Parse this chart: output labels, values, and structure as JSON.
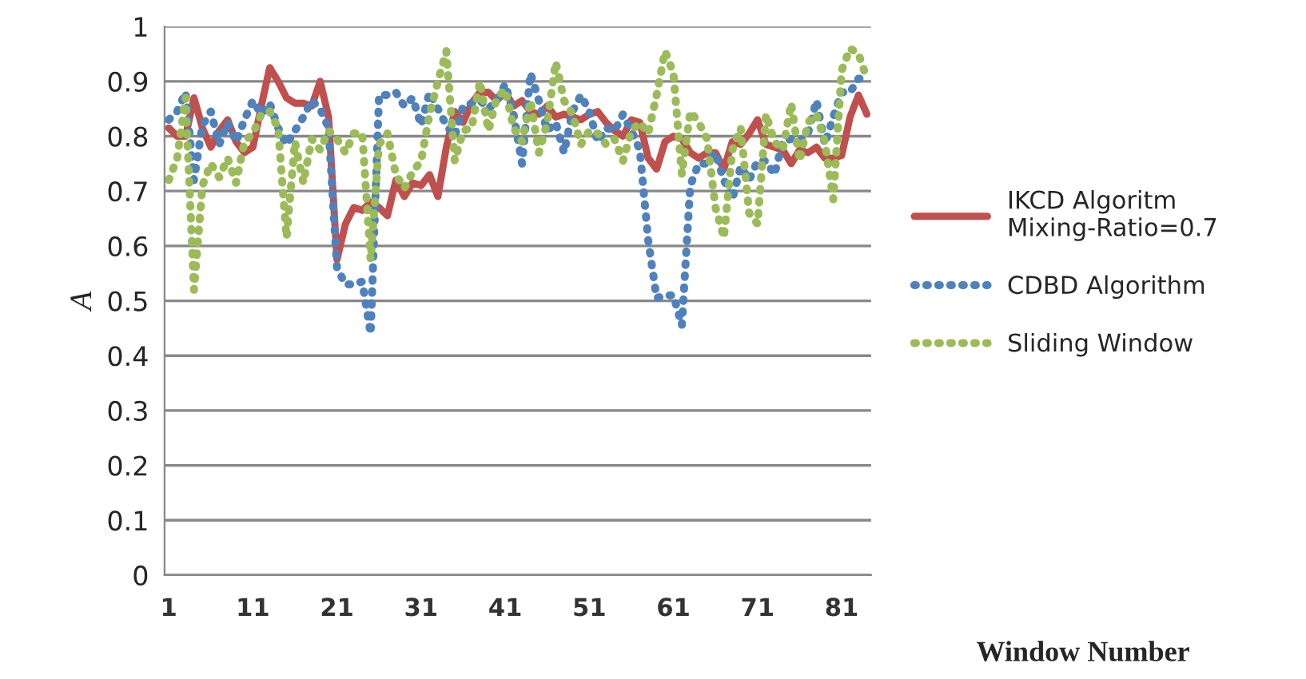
{
  "chart_data": {
    "type": "line",
    "xlabel": "Window Number",
    "ylabel": "A",
    "categories": [
      "1",
      null,
      null,
      null,
      null,
      null,
      null,
      null,
      null,
      null,
      "11",
      null,
      null,
      null,
      null,
      null,
      null,
      null,
      null,
      null,
      "21",
      null,
      null,
      null,
      null,
      null,
      null,
      null,
      null,
      null,
      "31",
      null,
      null,
      null,
      null,
      null,
      null,
      null,
      null,
      null,
      "41",
      null,
      null,
      null,
      null,
      null,
      null,
      null,
      null,
      null,
      "51",
      null,
      null,
      null,
      null,
      null,
      null,
      null,
      null,
      null,
      "61",
      null,
      null,
      null,
      null,
      null,
      null,
      null,
      null,
      null,
      "71",
      null,
      null,
      null,
      null,
      null,
      null,
      null,
      null,
      null,
      "81",
      null,
      null,
      null
    ],
    "ylim": [
      0,
      1
    ],
    "yticks": [
      0,
      0.1,
      0.2,
      0.3,
      0.4,
      0.5,
      0.6,
      0.7,
      0.8,
      0.9,
      1
    ],
    "grid": "y",
    "legend": "right",
    "marker": "none",
    "series": [
      {
        "name": "IKCD Algoritm\nMixing-Ratio=0.7",
        "color": "#c0504d",
        "line_style": "solid",
        "values": [
          0.815,
          0.8,
          0.8,
          0.87,
          0.815,
          0.78,
          0.81,
          0.83,
          0.79,
          0.77,
          0.78,
          0.855,
          0.925,
          0.9,
          0.87,
          0.86,
          0.86,
          0.855,
          0.9,
          0.835,
          0.575,
          0.64,
          0.67,
          0.665,
          0.68,
          0.67,
          0.655,
          0.72,
          0.69,
          0.715,
          0.71,
          0.73,
          0.69,
          0.78,
          0.845,
          0.825,
          0.86,
          0.88,
          0.88,
          0.865,
          0.88,
          0.855,
          0.865,
          0.845,
          0.84,
          0.855,
          0.835,
          0.84,
          0.835,
          0.83,
          0.84,
          0.845,
          0.825,
          0.81,
          0.8,
          0.83,
          0.825,
          0.76,
          0.74,
          0.79,
          0.8,
          0.795,
          0.77,
          0.76,
          0.77,
          0.77,
          0.74,
          0.79,
          0.785,
          0.805,
          0.83,
          0.785,
          0.78,
          0.775,
          0.75,
          0.775,
          0.77,
          0.78,
          0.76,
          0.76,
          0.765,
          0.835,
          0.875,
          0.84
        ]
      },
      {
        "name": "CDBD Algorithm",
        "color": "#4f81bd",
        "line_style": "dotted",
        "values": [
          0.83,
          0.845,
          0.88,
          0.72,
          0.82,
          0.845,
          0.785,
          0.825,
          0.79,
          0.83,
          0.865,
          0.84,
          0.86,
          0.815,
          0.785,
          0.81,
          0.835,
          0.865,
          0.85,
          0.815,
          0.56,
          0.53,
          0.53,
          0.535,
          0.44,
          0.875,
          0.875,
          0.88,
          0.855,
          0.87,
          0.82,
          0.88,
          0.85,
          0.82,
          0.8,
          0.855,
          0.86,
          0.865,
          0.85,
          0.865,
          0.895,
          0.84,
          0.75,
          0.915,
          0.865,
          0.81,
          0.825,
          0.77,
          0.845,
          0.875,
          0.845,
          0.79,
          0.815,
          0.81,
          0.84,
          0.81,
          0.775,
          0.61,
          0.505,
          0.51,
          0.51,
          0.455,
          0.71,
          0.75,
          0.75,
          0.77,
          0.72,
          0.685,
          0.745,
          0.72,
          0.755,
          0.755,
          0.73,
          0.79,
          0.795,
          0.79,
          0.805,
          0.865,
          0.785,
          0.835,
          0.88,
          0.88,
          0.905,
          0.905
        ]
      },
      {
        "name": "Sliding Window",
        "color": "#9bbb59",
        "line_style": "dotted",
        "values": [
          0.72,
          0.76,
          0.87,
          0.52,
          0.71,
          0.75,
          0.725,
          0.76,
          0.715,
          0.79,
          0.805,
          0.84,
          0.845,
          0.815,
          0.615,
          0.79,
          0.715,
          0.795,
          0.775,
          0.81,
          0.795,
          0.77,
          0.805,
          0.805,
          0.575,
          0.785,
          0.805,
          0.73,
          0.705,
          0.735,
          0.755,
          0.84,
          0.9,
          0.955,
          0.755,
          0.81,
          0.815,
          0.9,
          0.81,
          0.87,
          0.885,
          0.815,
          0.79,
          0.865,
          0.77,
          0.825,
          0.935,
          0.865,
          0.84,
          0.785,
          0.81,
          0.805,
          0.785,
          0.795,
          0.755,
          0.81,
          0.825,
          0.805,
          0.875,
          0.955,
          0.915,
          0.73,
          0.845,
          0.825,
          0.795,
          0.67,
          0.615,
          0.775,
          0.815,
          0.66,
          0.64,
          0.84,
          0.79,
          0.775,
          0.86,
          0.755,
          0.825,
          0.84,
          0.79,
          0.685,
          0.92,
          0.96,
          0.95,
          0.905
        ]
      }
    ]
  }
}
